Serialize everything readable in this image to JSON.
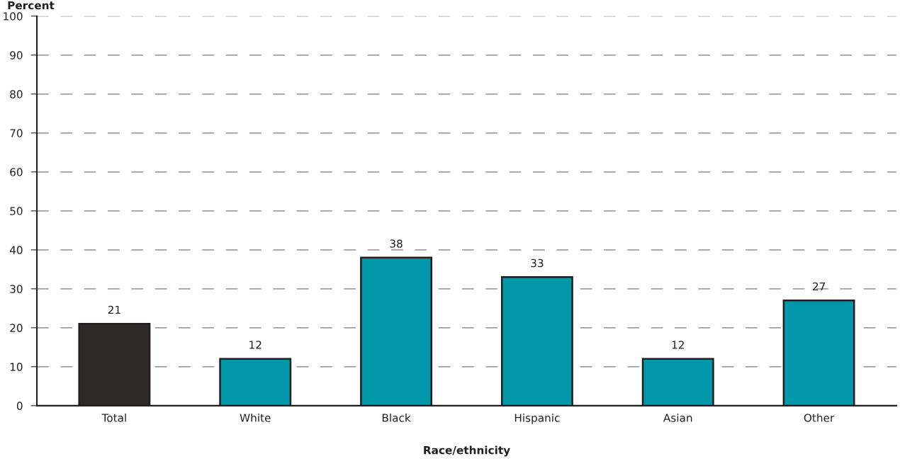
{
  "chart_data": {
    "type": "bar",
    "ylabel": "Percent",
    "xlabel": "Race/ethnicity",
    "categories": [
      "Total",
      "White",
      "Black",
      "Hispanic",
      "Asian",
      "Other"
    ],
    "values": [
      21,
      12,
      38,
      33,
      12,
      27
    ],
    "colors": [
      "#2d2926",
      "#0097a9",
      "#0097a9",
      "#0097a9",
      "#0097a9",
      "#0097a9"
    ],
    "ylim": [
      0,
      100
    ],
    "yticks": [
      0,
      10,
      20,
      30,
      40,
      50,
      60,
      70,
      80,
      90,
      100
    ],
    "grid": "y",
    "data_labels": true
  }
}
